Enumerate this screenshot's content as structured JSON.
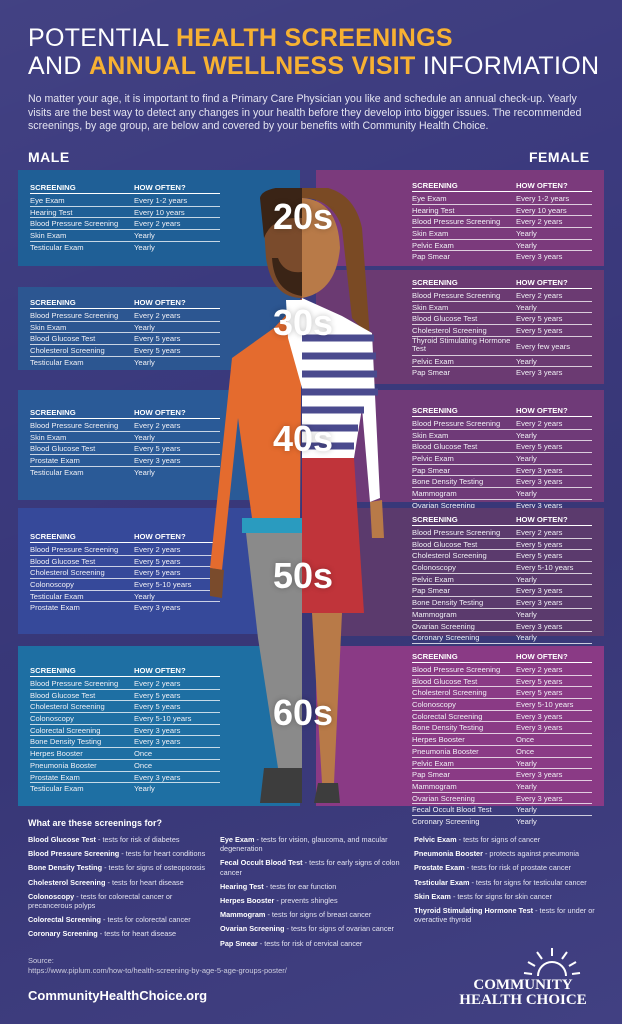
{
  "title": {
    "line1_pre": "POTENTIAL ",
    "line1_hl": "HEALTH SCREENINGS",
    "line2_pre": "AND ",
    "line2_hl": "ANNUAL WELLNESS VISIT",
    "line2_post": " INFORMATION"
  },
  "intro": "No matter your age, it is important to find a Primary Care Physician you like and schedule an annual check-up. Yearly visits are the best way to detect any changes in your health before they develop into bigger issues. The recommended screenings, by age group, are below and covered by your benefits with Community Health Choice.",
  "labels": {
    "male": "MALE",
    "female": "FEMALE",
    "col1": "SCREENING",
    "col2": "HOW OFTEN?"
  },
  "ages": [
    "20s",
    "30s",
    "40s",
    "50s",
    "60s"
  ],
  "male": [
    [
      [
        "Eye Exam",
        "Every 1-2 years"
      ],
      [
        "Hearing Test",
        "Every 10 years"
      ],
      [
        "Blood Pressure Screening",
        "Every 2 years"
      ],
      [
        "Skin Exam",
        "Yearly"
      ],
      [
        "Testicular Exam",
        "Yearly"
      ]
    ],
    [
      [
        "Blood Pressure Screening",
        "Every 2 years"
      ],
      [
        "Skin Exam",
        "Yearly"
      ],
      [
        "Blood Glucose Test",
        "Every 5 years"
      ],
      [
        "Cholesterol Screening",
        "Every 5 years"
      ],
      [
        "Testicular Exam",
        "Yearly"
      ]
    ],
    [
      [
        "Blood Pressure Screening",
        "Every 2 years"
      ],
      [
        "Skin Exam",
        "Yearly"
      ],
      [
        "Blood Glucose Test",
        "Every 5 years"
      ],
      [
        "Prostate Exam",
        "Every 3 years"
      ],
      [
        "Testicular Exam",
        "Yearly"
      ]
    ],
    [
      [
        "Blood Pressure Screening",
        "Every 2 years"
      ],
      [
        "Blood Glucose Test",
        "Every 5 years"
      ],
      [
        "Cholesterol Screening",
        "Every 5 years"
      ],
      [
        "Colonoscopy",
        "Every 5-10 years"
      ],
      [
        "Testicular Exam",
        "Yearly"
      ],
      [
        "Prostate Exam",
        "Every 3 years"
      ]
    ],
    [
      [
        "Blood Pressure Screening",
        "Every 2 years"
      ],
      [
        "Blood Glucose Test",
        "Every 5 years"
      ],
      [
        "Cholesterol Screening",
        "Every 5 years"
      ],
      [
        "Colonoscopy",
        "Every 5-10 years"
      ],
      [
        "Colorectal Screening",
        "Every 3 years"
      ],
      [
        "Bone Density Testing",
        "Every 3 years"
      ],
      [
        "Herpes Booster",
        "Once"
      ],
      [
        "Pneumonia Booster",
        "Once"
      ],
      [
        "Prostate Exam",
        "Every 3 years"
      ],
      [
        "Testicular Exam",
        "Yearly"
      ]
    ]
  ],
  "female": [
    [
      [
        "Eye Exam",
        "Every 1-2 years"
      ],
      [
        "Hearing Test",
        "Every 10 years"
      ],
      [
        "Blood Pressure Screening",
        "Every 2 years"
      ],
      [
        "Skin Exam",
        "Yearly"
      ],
      [
        "Pelvic Exam",
        "Yearly"
      ],
      [
        "Pap Smear",
        "Every 3 years"
      ]
    ],
    [
      [
        "Blood Pressure Screening",
        "Every 2 years"
      ],
      [
        "Skin Exam",
        "Yearly"
      ],
      [
        "Blood Glucose Test",
        "Every 5 years"
      ],
      [
        "Cholesterol Screening",
        "Every 5 years"
      ],
      [
        "Thyroid Stimulating Hormone Test",
        "Every few years"
      ],
      [
        "Pelvic Exam",
        "Yearly"
      ],
      [
        "Pap Smear",
        "Every 3 years"
      ]
    ],
    [
      [
        "Blood Pressure Screening",
        "Every 2 years"
      ],
      [
        "Skin Exam",
        "Yearly"
      ],
      [
        "Blood Glucose Test",
        "Every 5 years"
      ],
      [
        "Pelvic Exam",
        "Yearly"
      ],
      [
        "Pap Smear",
        "Every 3 years"
      ],
      [
        "Bone Density Testing",
        "Every 3 years"
      ],
      [
        "Mammogram",
        "Yearly"
      ],
      [
        "Ovarian Screening",
        "Every 3 years"
      ]
    ],
    [
      [
        "Blood Pressure Screening",
        "Every 2 years"
      ],
      [
        "Blood Glucose Test",
        "Every 5 years"
      ],
      [
        "Cholesterol Screening",
        "Every 5 years"
      ],
      [
        "Colonoscopy",
        "Every 5-10 years"
      ],
      [
        "Pelvic Exam",
        "Yearly"
      ],
      [
        "Pap Smear",
        "Every 3 years"
      ],
      [
        "Bone Density Testing",
        "Every 3 years"
      ],
      [
        "Mammogram",
        "Yearly"
      ],
      [
        "Ovarian Screening",
        "Every 3 years"
      ],
      [
        "Coronary Screening",
        "Yearly"
      ],
      [
        "Fecal Occult Blood Test",
        "Yearly"
      ]
    ],
    [
      [
        "Blood Pressure Screening",
        "Every 2 years"
      ],
      [
        "Blood Glucose Test",
        "Every 5 years"
      ],
      [
        "Cholesterol Screening",
        "Every 5 years"
      ],
      [
        "Colonoscopy",
        "Every 5-10 years"
      ],
      [
        "Colorectal Screening",
        "Every 3 years"
      ],
      [
        "Bone Density Testing",
        "Every 3 years"
      ],
      [
        "Herpes Booster",
        "Once"
      ],
      [
        "Pneumonia Booster",
        "Once"
      ],
      [
        "Pelvic Exam",
        "Yearly"
      ],
      [
        "Pap Smear",
        "Every 3 years"
      ],
      [
        "Mammogram",
        "Yearly"
      ],
      [
        "Ovarian Screening",
        "Every 3 years"
      ],
      [
        "Fecal Occult Blood Test",
        "Yearly"
      ],
      [
        "Coronary Screening",
        "Yearly"
      ]
    ]
  ],
  "defs_title": "What are these screenings for?",
  "defs": [
    [
      [
        "Blood Glucose Test",
        " - tests for risk of diabetes"
      ],
      [
        "Blood Pressure Screening",
        " - tests for heart conditions"
      ],
      [
        "Bone Density Testing",
        " - tests for signs of osteoporosis"
      ],
      [
        "Cholesterol Screening",
        " - tests for heart disease"
      ],
      [
        "Colonoscopy",
        " - tests for colorectal cancer or precancerous polyps"
      ],
      [
        "Colorectal Screening",
        " - tests for colorectal cancer"
      ],
      [
        "Coronary Screening",
        " - tests for heart disease"
      ]
    ],
    [
      [
        "Eye Exam",
        " - tests for vision, glaucoma, and macular degeneration"
      ],
      [
        "Fecal Occult Blood Test",
        " - tests for early signs of colon cancer"
      ],
      [
        "Hearing Test",
        " - tests for ear function"
      ],
      [
        "Herpes Booster",
        " - prevents shingles"
      ],
      [
        "Mammogram",
        " - tests for signs of breast cancer"
      ],
      [
        "Ovarian Screening",
        " - tests for signs of ovarian cancer"
      ],
      [
        "Pap Smear",
        " - tests for risk of cervical cancer"
      ]
    ],
    [
      [
        "Pelvic Exam",
        " - tests for signs of cancer"
      ],
      [
        "Pneumonia Booster",
        " - protects against pneumonia"
      ],
      [
        "Prostate Exam",
        " - tests for risk of prostate cancer"
      ],
      [
        "Testicular Exam",
        " - tests for signs for testicular cancer"
      ],
      [
        "Skin Exam",
        " - tests for signs for skin cancer"
      ],
      [
        "Thyroid Stimulating Hormone Test",
        " - tests for under or overactive thyroid"
      ]
    ]
  ],
  "source_label": "Source:",
  "source_url": "https://www.piplum.com/how-to/health-screening-by-age-5-age-groups-poster/",
  "site": "CommunityHealthChoice.org",
  "logo": {
    "line1": "COMMUNITY",
    "line2": "HEALTH CHOICE"
  }
}
